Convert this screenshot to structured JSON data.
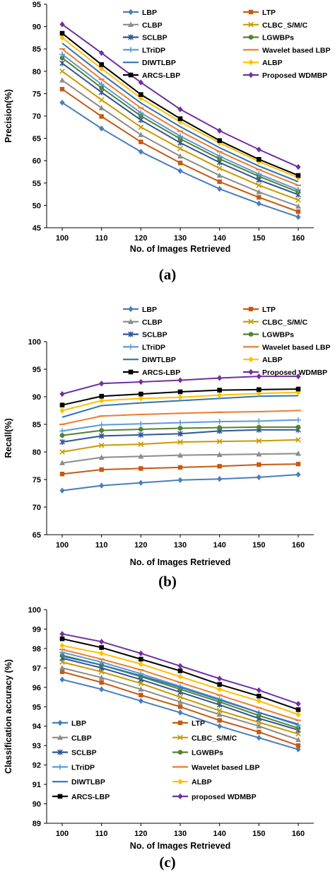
{
  "series_styles": [
    {
      "name": "LBP",
      "color": "#4a7ebb",
      "marker": "diamond"
    },
    {
      "name": "LTP",
      "color": "#c55a11",
      "marker": "square"
    },
    {
      "name": "CLBP",
      "color": "#8c8c8c",
      "marker": "triangle"
    },
    {
      "name": "CLBC_S/M/C",
      "color": "#c99a00",
      "marker": "x"
    },
    {
      "name": "SCLBP",
      "color": "#2f5597",
      "marker": "star"
    },
    {
      "name": "LGWBPs",
      "color": "#548235",
      "marker": "circle"
    },
    {
      "name": "LTriDP",
      "color": "#5b9bd5",
      "marker": "plus"
    },
    {
      "name": "Wavelet based LBP",
      "color": "#ed7d31",
      "marker": "dash"
    },
    {
      "name": "DIWTLBP",
      "color": "#2e75b6",
      "marker": "none"
    },
    {
      "name": "ALBP",
      "color": "#ffc000",
      "marker": "diamond"
    },
    {
      "name": "ARCS-LBP",
      "color": "#000000",
      "marker": "cross"
    },
    {
      "name": "Proposed WDMBP",
      "color": "#7030a0",
      "marker": "diamond"
    }
  ],
  "chart_data": [
    {
      "type": "line",
      "panel_label": "(a)",
      "xlabel": "No. of  Images Retrieved",
      "ylabel": "Precision(%)",
      "x": [
        100,
        110,
        120,
        130,
        140,
        150,
        160
      ],
      "xlim": [
        100,
        160
      ],
      "ylim": [
        45,
        95
      ],
      "yticks": [
        45,
        50,
        55,
        60,
        65,
        70,
        75,
        80,
        85,
        90,
        95
      ],
      "grid": false,
      "legend_position": "top",
      "series": [
        {
          "name": "LBP",
          "values": [
            73.0,
            67.2,
            62.0,
            57.7,
            53.7,
            50.4,
            47.4
          ]
        },
        {
          "name": "LTP",
          "values": [
            76.0,
            69.9,
            64.2,
            59.5,
            55.3,
            51.8,
            48.6
          ]
        },
        {
          "name": "CLBP",
          "values": [
            78.0,
            71.8,
            65.8,
            61.0,
            56.7,
            53.0,
            49.8
          ]
        },
        {
          "name": "CLBC_S/M/C",
          "values": [
            80.0,
            73.6,
            67.5,
            62.7,
            58.3,
            54.5,
            51.2
          ]
        },
        {
          "name": "SCLBP",
          "values": [
            81.8,
            75.3,
            69.1,
            64.0,
            59.6,
            55.7,
            52.4
          ]
        },
        {
          "name": "LGWBPs",
          "values": [
            83.0,
            76.3,
            70.0,
            64.9,
            60.4,
            56.5,
            53.0
          ]
        },
        {
          "name": "LTriDP",
          "values": [
            83.8,
            77.1,
            70.7,
            65.5,
            61.0,
            57.0,
            53.5
          ]
        },
        {
          "name": "Wavelet based LBP",
          "values": [
            85.0,
            78.2,
            71.8,
            66.6,
            62.0,
            58.0,
            54.5
          ]
        },
        {
          "name": "DIWTLBP",
          "values": [
            86.3,
            79.4,
            72.9,
            67.6,
            62.9,
            58.8,
            55.3
          ]
        },
        {
          "name": "ALBP",
          "values": [
            87.5,
            80.6,
            74.0,
            68.7,
            64.0,
            59.8,
            56.2
          ]
        },
        {
          "name": "ARCS-LBP",
          "values": [
            88.5,
            81.5,
            74.8,
            69.4,
            64.5,
            60.3,
            56.7
          ]
        },
        {
          "name": "Proposed WDMBP",
          "values": [
            90.5,
            84.1,
            77.5,
            71.5,
            66.7,
            62.5,
            58.6
          ]
        }
      ]
    },
    {
      "type": "line",
      "panel_label": "(b)",
      "xlabel": "No. of  Images Retrieved",
      "ylabel": "Recall(%)",
      "x": [
        100,
        110,
        120,
        130,
        140,
        150,
        160
      ],
      "xlim": [
        100,
        160
      ],
      "ylim": [
        65,
        100
      ],
      "yticks": [
        65,
        70,
        75,
        80,
        85,
        90,
        95,
        100
      ],
      "grid": false,
      "legend_position": "top",
      "series": [
        {
          "name": "LBP",
          "values": [
            73.0,
            73.9,
            74.4,
            74.9,
            75.1,
            75.4,
            75.9
          ]
        },
        {
          "name": "LTP",
          "values": [
            76.0,
            76.8,
            77.0,
            77.2,
            77.4,
            77.7,
            77.8
          ]
        },
        {
          "name": "CLBP",
          "values": [
            78.0,
            79.0,
            79.2,
            79.4,
            79.5,
            79.6,
            79.7
          ]
        },
        {
          "name": "CLBC_S/M/C",
          "values": [
            80.0,
            81.2,
            81.4,
            81.8,
            81.9,
            82.0,
            82.2
          ]
        },
        {
          "name": "SCLBP",
          "values": [
            81.8,
            82.9,
            83.1,
            83.3,
            83.8,
            84.0,
            84.0
          ]
        },
        {
          "name": "LGWBPs",
          "values": [
            83.0,
            83.9,
            84.1,
            84.3,
            84.4,
            84.5,
            84.5
          ]
        },
        {
          "name": "LTriDP",
          "values": [
            83.8,
            84.9,
            85.1,
            85.3,
            85.5,
            85.6,
            85.8
          ]
        },
        {
          "name": "Wavelet based LBP",
          "values": [
            85.0,
            86.5,
            86.8,
            87.0,
            87.2,
            87.3,
            87.5
          ]
        },
        {
          "name": "DIWTLBP",
          "values": [
            86.3,
            88.4,
            88.9,
            89.3,
            89.7,
            90.1,
            90.2
          ]
        },
        {
          "name": "ALBP",
          "values": [
            87.5,
            89.3,
            89.7,
            89.9,
            90.3,
            90.6,
            90.8
          ]
        },
        {
          "name": "ARCS-LBP",
          "values": [
            88.5,
            90.1,
            90.5,
            90.9,
            91.2,
            91.3,
            91.4
          ]
        },
        {
          "name": "Proposed WDMBP",
          "values": [
            90.5,
            92.4,
            92.7,
            93.0,
            93.4,
            93.7,
            93.7
          ]
        }
      ]
    },
    {
      "type": "line",
      "panel_label": "(c)",
      "xlabel": "No. of Images Retrieved",
      "ylabel": "Classification accuracy (%)",
      "x": [
        100,
        110,
        120,
        130,
        140,
        150,
        160
      ],
      "xlim": [
        100,
        160
      ],
      "ylim": [
        89,
        100
      ],
      "yticks": [
        89,
        90,
        91,
        92,
        93,
        94,
        95,
        96,
        97,
        98,
        99,
        100
      ],
      "grid": false,
      "legend_position": "bottom",
      "series": [
        {
          "name": "LBP",
          "values": [
            96.4,
            95.9,
            95.3,
            94.7,
            94.0,
            93.4,
            92.8
          ]
        },
        {
          "name": "LTP",
          "values": [
            96.8,
            96.25,
            95.6,
            95.0,
            94.3,
            93.7,
            93.0
          ]
        },
        {
          "name": "CLBP",
          "values": [
            97.0,
            96.5,
            95.9,
            95.25,
            94.6,
            94.0,
            93.3
          ]
        },
        {
          "name": "CLBC_S/M/C",
          "values": [
            97.3,
            96.8,
            96.2,
            95.5,
            94.8,
            94.2,
            93.6
          ]
        },
        {
          "name": "SCLBP",
          "values": [
            97.5,
            97.0,
            96.4,
            95.75,
            95.1,
            94.4,
            93.8
          ]
        },
        {
          "name": "LGWBPs",
          "values": [
            97.65,
            97.15,
            96.55,
            95.9,
            95.25,
            94.55,
            93.9
          ]
        },
        {
          "name": "LTriDP",
          "values": [
            97.8,
            97.3,
            96.7,
            96.05,
            95.4,
            94.7,
            94.05
          ]
        },
        {
          "name": "Wavelet based LBP",
          "values": [
            97.95,
            97.45,
            96.9,
            96.25,
            95.6,
            94.95,
            94.3
          ]
        },
        {
          "name": "DIWTLBP",
          "values": [
            97.6,
            97.15,
            96.6,
            96.0,
            95.35,
            94.7,
            94.1
          ]
        },
        {
          "name": "ALBP",
          "values": [
            98.15,
            97.75,
            97.2,
            96.55,
            95.9,
            95.3,
            94.6
          ]
        },
        {
          "name": "ARCS-LBP",
          "values": [
            98.5,
            98.05,
            97.45,
            96.85,
            96.15,
            95.55,
            94.85
          ]
        },
        {
          "name": "Proposed WDMBP",
          "values": [
            98.75,
            98.35,
            97.75,
            97.1,
            96.45,
            95.85,
            95.15
          ]
        }
      ],
      "legend_labels": [
        "LBP",
        "LTP",
        "CLBP",
        "CLBC_S/M/C",
        "SCLBP",
        "LGWBPs",
        "LTriDP",
        "Wavelet based LBP",
        "DIWTLBP",
        "ALBP",
        "ARCS-LBP",
        "proposed WDMBP"
      ]
    }
  ]
}
